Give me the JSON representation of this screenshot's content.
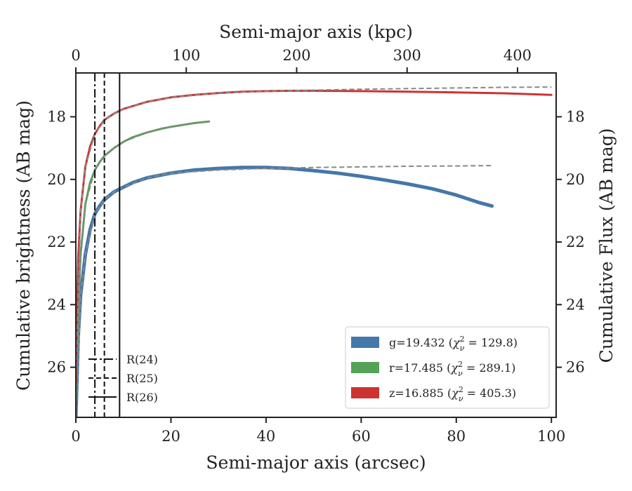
{
  "chart_data": {
    "type": "line",
    "xlabel": "Semi-major axis (arcsec)",
    "ylabel": "Cumulative brightness (AB mag)",
    "ylabel_right": "Cumulative Flux (AB mag)",
    "xlabel_top": "Semi-major axis (kpc)",
    "xlim": [
      0,
      101
    ],
    "ylim": [
      27.6,
      16.6
    ],
    "xlim_top_kpc": [
      0,
      435
    ],
    "x_ticks": [
      "0",
      "20",
      "40",
      "60",
      "80",
      "100"
    ],
    "x_ticks_top": [
      "0",
      "100",
      "200",
      "300",
      "400"
    ],
    "y_ticks": [
      "18",
      "20",
      "22",
      "24",
      "26"
    ],
    "grid": false,
    "series": [
      {
        "name": "g=19.432 ($\\chi^2_\\nu=129.8$)",
        "color": "#4477aa",
        "x": [
          0,
          0.5,
          1,
          2,
          3,
          4,
          5,
          6,
          8,
          10,
          12,
          15,
          20,
          25,
          30,
          35,
          40,
          45,
          50,
          55,
          60,
          65,
          70,
          75,
          80,
          85,
          87.5
        ],
        "y": [
          27.6,
          25.0,
          23.7,
          22.4,
          21.6,
          21.1,
          20.85,
          20.65,
          20.4,
          20.25,
          20.1,
          19.95,
          19.8,
          19.7,
          19.65,
          19.62,
          19.62,
          19.65,
          19.72,
          19.8,
          19.9,
          20.02,
          20.15,
          20.3,
          20.5,
          20.75,
          20.85
        ],
        "model_x": [
          0,
          1,
          2,
          4,
          6,
          8,
          10,
          15,
          20,
          30,
          40,
          50,
          60,
          70,
          80,
          87.5
        ],
        "model_y": [
          27.6,
          23.7,
          22.4,
          21.1,
          20.65,
          20.4,
          20.25,
          19.95,
          19.8,
          19.7,
          19.65,
          19.62,
          19.6,
          19.58,
          19.57,
          19.56
        ]
      },
      {
        "name": "r=17.485 ($\\chi^2_\\nu=289.1$)",
        "color": "#55a155",
        "x": [
          0,
          0.5,
          1,
          2,
          3,
          4,
          5,
          6,
          8,
          10,
          12,
          15,
          18,
          20,
          25,
          28
        ],
        "y": [
          27.0,
          24.0,
          22.4,
          20.8,
          20.1,
          19.7,
          19.45,
          19.25,
          19.0,
          18.8,
          18.65,
          18.5,
          18.38,
          18.32,
          18.2,
          18.15
        ],
        "model_x": [
          0,
          1,
          2,
          4,
          6,
          8,
          10,
          15,
          20,
          25,
          28
        ],
        "model_y": [
          27.0,
          22.4,
          20.8,
          19.7,
          19.25,
          19.0,
          18.8,
          18.5,
          18.32,
          18.2,
          18.15
        ]
      },
      {
        "name": "z=16.885 ($\\chi^2_\\nu=405.3$)",
        "color": "#cc3333",
        "x": [
          0,
          0.5,
          1,
          2,
          3,
          4,
          5,
          6,
          8,
          10,
          15,
          20,
          25,
          30,
          35,
          40,
          45,
          50,
          60,
          70,
          80,
          90,
          100
        ],
        "y": [
          26.5,
          22.5,
          21.0,
          19.6,
          18.95,
          18.55,
          18.3,
          18.1,
          17.9,
          17.75,
          17.52,
          17.38,
          17.3,
          17.24,
          17.2,
          17.18,
          17.17,
          17.17,
          17.18,
          17.2,
          17.22,
          17.25,
          17.3
        ],
        "model_x": [
          0,
          1,
          2,
          4,
          6,
          8,
          10,
          15,
          20,
          30,
          40,
          50,
          60,
          70,
          80,
          90,
          100
        ],
        "model_y": [
          26.5,
          21.0,
          19.6,
          18.55,
          18.1,
          17.9,
          17.75,
          17.52,
          17.38,
          17.24,
          17.18,
          17.15,
          17.12,
          17.1,
          17.08,
          17.06,
          17.05
        ]
      }
    ],
    "reference_lines": [
      {
        "label": "R(24)",
        "x": 4.0,
        "style": "dashdot"
      },
      {
        "label": "R(25)",
        "x": 6.0,
        "style": "dashed"
      },
      {
        "label": "R(26)",
        "x": 9.2,
        "style": "solid"
      }
    ],
    "legend_placement": "lower-right"
  }
}
